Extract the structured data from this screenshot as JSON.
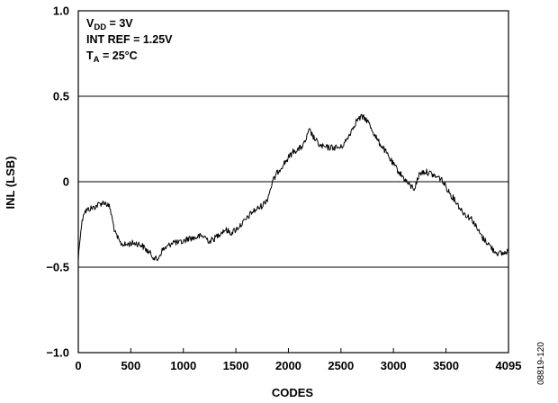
{
  "chart_data": {
    "type": "line",
    "title": "",
    "xlabel": "CODES",
    "ylabel": "INL (LSB)",
    "xlim": [
      0,
      4095
    ],
    "ylim": [
      -1.0,
      1.0
    ],
    "x_ticks": [
      0,
      500,
      1000,
      1500,
      2000,
      2500,
      3000,
      3500,
      4095
    ],
    "x_tick_labels": [
      "0",
      "500",
      "1000",
      "1500",
      "2000",
      "2500",
      "3000",
      "3500",
      "4095"
    ],
    "y_ticks": [
      -1.0,
      -0.5,
      0,
      0.5,
      1.0
    ],
    "y_tick_labels": [
      "−1.0",
      "−0.5",
      "0",
      "0.5",
      "1.0"
    ],
    "grid_lines_y": [
      -0.5,
      0,
      0.5
    ],
    "conditions": {
      "vdd_main": "V",
      "vdd_sub": "DD",
      "vdd_value": " = 3V",
      "int_ref": "INT REF = 1.25V",
      "ta_main": "T",
      "ta_sub": "A",
      "ta_value": " = 25°C"
    },
    "figure_id": "08819-120",
    "series": [
      {
        "color": "#000000",
        "x": [
          0,
          20,
          50,
          100,
          150,
          200,
          250,
          300,
          350,
          400,
          450,
          500,
          550,
          600,
          650,
          700,
          750,
          800,
          850,
          900,
          950,
          1000,
          1050,
          1100,
          1150,
          1200,
          1250,
          1300,
          1350,
          1400,
          1450,
          1500,
          1550,
          1600,
          1650,
          1700,
          1750,
          1800,
          1850,
          1900,
          1950,
          2000,
          2050,
          2100,
          2150,
          2200,
          2250,
          2300,
          2350,
          2400,
          2450,
          2500,
          2550,
          2600,
          2650,
          2700,
          2750,
          2800,
          2850,
          2900,
          2950,
          3000,
          3050,
          3100,
          3150,
          3200,
          3250,
          3300,
          3350,
          3400,
          3450,
          3500,
          3550,
          3600,
          3650,
          3700,
          3750,
          3800,
          3850,
          3900,
          3950,
          4000,
          4050,
          4095
        ],
        "y": [
          -0.45,
          -0.3,
          -0.18,
          -0.16,
          -0.15,
          -0.13,
          -0.12,
          -0.15,
          -0.3,
          -0.36,
          -0.37,
          -0.36,
          -0.36,
          -0.37,
          -0.4,
          -0.43,
          -0.46,
          -0.4,
          -0.38,
          -0.35,
          -0.36,
          -0.35,
          -0.33,
          -0.33,
          -0.32,
          -0.32,
          -0.35,
          -0.33,
          -0.3,
          -0.28,
          -0.3,
          -0.28,
          -0.25,
          -0.22,
          -0.18,
          -0.16,
          -0.14,
          -0.1,
          0.0,
          0.06,
          0.1,
          0.14,
          0.18,
          0.19,
          0.22,
          0.3,
          0.25,
          0.21,
          0.2,
          0.2,
          0.2,
          0.2,
          0.24,
          0.3,
          0.36,
          0.38,
          0.36,
          0.3,
          0.24,
          0.2,
          0.15,
          0.1,
          0.06,
          0.02,
          -0.02,
          -0.04,
          0.05,
          0.06,
          0.05,
          0.03,
          0.02,
          -0.03,
          -0.08,
          -0.12,
          -0.17,
          -0.2,
          -0.22,
          -0.28,
          -0.33,
          -0.36,
          -0.4,
          -0.42,
          -0.42,
          -0.4
        ]
      }
    ]
  }
}
